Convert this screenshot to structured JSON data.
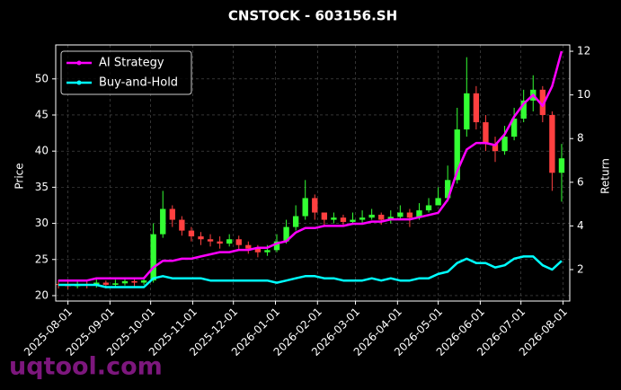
{
  "chart_data": {
    "type": "candlestick",
    "title": "CNSTOCK - 603156.SH",
    "ylabel": "Price",
    "y2label": "Return",
    "watermark": "uqtool.com",
    "x": [
      "2025-07-25",
      "2025-08-01",
      "2025-08-08",
      "2025-08-15",
      "2025-08-22",
      "2025-08-29",
      "2025-09-05",
      "2025-09-12",
      "2025-09-19",
      "2025-09-26",
      "2025-10-03",
      "2025-10-10",
      "2025-10-17",
      "2025-10-24",
      "2025-10-31",
      "2025-11-07",
      "2025-11-14",
      "2025-11-21",
      "2025-11-28",
      "2025-12-05",
      "2025-12-12",
      "2025-12-19",
      "2025-12-26",
      "2026-01-02",
      "2026-01-09",
      "2026-01-16",
      "2026-01-23",
      "2026-01-30",
      "2026-02-06",
      "2026-02-13",
      "2026-02-20",
      "2026-02-27",
      "2026-03-06",
      "2026-03-13",
      "2026-03-20",
      "2026-03-27",
      "2026-04-03",
      "2026-04-10",
      "2026-04-17",
      "2026-04-24",
      "2026-05-01",
      "2026-05-08",
      "2026-05-15",
      "2026-05-22",
      "2026-05-29",
      "2026-06-05",
      "2026-06-12",
      "2026-06-19",
      "2026-06-26",
      "2026-07-03",
      "2026-07-10",
      "2026-07-17",
      "2026-07-24",
      "2026-07-31"
    ],
    "open": [
      21.6,
      21.5,
      21.3,
      21.6,
      21.4,
      21.8,
      21.5,
      21.7,
      22.0,
      21.8,
      22.1,
      28.5,
      32.0,
      30.5,
      29.0,
      28.2,
      27.8,
      27.5,
      27.2,
      27.8,
      27.0,
      26.5,
      26.0,
      26.3,
      27.5,
      29.5,
      31.0,
      33.5,
      31.5,
      30.5,
      30.8,
      30.2,
      30.5,
      30.8,
      31.2,
      30.5,
      30.9,
      31.5,
      30.8,
      31.8,
      32.5,
      33.5,
      36.0,
      43.0,
      48.0,
      44.0,
      41.0,
      40.0,
      42.0,
      44.5,
      47.0,
      48.5,
      45.0,
      37.0
    ],
    "high": [
      22.2,
      22.0,
      22.1,
      22.0,
      22.3,
      22.1,
      22.2,
      22.5,
      22.4,
      22.6,
      30.0,
      34.5,
      32.5,
      31.0,
      29.5,
      28.8,
      28.5,
      28.2,
      28.5,
      28.3,
      27.5,
      27.0,
      27.0,
      28.5,
      30.5,
      32.5,
      36.0,
      34.0,
      31.5,
      31.5,
      31.2,
      31.5,
      31.8,
      32.0,
      31.5,
      31.8,
      32.5,
      32.0,
      32.8,
      33.5,
      35.0,
      38.0,
      46.0,
      53.0,
      49.0,
      45.0,
      42.0,
      43.5,
      46.0,
      48.5,
      50.5,
      49.0,
      45.5,
      41.0
    ],
    "low": [
      21.0,
      20.9,
      21.0,
      21.0,
      21.1,
      21.0,
      21.2,
      21.4,
      21.3,
      21.5,
      21.8,
      28.0,
      29.5,
      28.3,
      27.5,
      27.0,
      26.8,
      26.5,
      26.8,
      26.4,
      25.8,
      25.3,
      25.5,
      26.0,
      27.2,
      29.0,
      30.5,
      30.5,
      29.8,
      30.0,
      29.6,
      29.8,
      30.0,
      30.5,
      29.8,
      30.0,
      30.5,
      29.5,
      30.5,
      31.5,
      32.8,
      33.0,
      35.5,
      42.0,
      43.0,
      40.0,
      38.5,
      39.5,
      41.5,
      44.0,
      45.5,
      44.0,
      34.5,
      33.0
    ],
    "close": [
      21.5,
      21.3,
      21.6,
      21.4,
      21.8,
      21.5,
      21.7,
      22.0,
      21.8,
      22.1,
      28.5,
      32.0,
      30.5,
      29.0,
      28.2,
      27.8,
      27.5,
      27.2,
      27.8,
      27.0,
      26.5,
      26.0,
      26.3,
      27.5,
      29.5,
      31.0,
      33.5,
      31.5,
      30.5,
      30.8,
      30.2,
      30.5,
      30.8,
      31.2,
      30.5,
      30.9,
      31.5,
      30.8,
      31.8,
      32.5,
      33.5,
      36.0,
      43.0,
      48.0,
      44.0,
      41.0,
      40.0,
      42.0,
      44.5,
      47.0,
      48.5,
      45.0,
      37.0,
      39.0
    ],
    "up_color": "#33ff33",
    "down_color": "#ff4040",
    "series": [
      {
        "name": "AI Strategy",
        "color": "#ff00ff",
        "axis": "y2",
        "values": [
          1.5,
          1.5,
          1.5,
          1.5,
          1.6,
          1.6,
          1.6,
          1.6,
          1.6,
          1.6,
          2.1,
          2.4,
          2.4,
          2.5,
          2.5,
          2.6,
          2.7,
          2.8,
          2.8,
          2.9,
          2.9,
          3.0,
          3.0,
          3.2,
          3.3,
          3.7,
          3.9,
          3.9,
          4.0,
          4.0,
          4.0,
          4.1,
          4.1,
          4.2,
          4.2,
          4.3,
          4.3,
          4.3,
          4.4,
          4.5,
          4.6,
          5.2,
          6.5,
          7.5,
          7.8,
          7.8,
          7.7,
          8.2,
          9.0,
          9.6,
          10.0,
          9.5,
          10.4,
          12.0
        ]
      },
      {
        "name": "Buy-and-Hold",
        "color": "#00ffff",
        "axis": "y2",
        "values": [
          1.3,
          1.3,
          1.3,
          1.3,
          1.3,
          1.2,
          1.2,
          1.2,
          1.2,
          1.2,
          1.6,
          1.7,
          1.6,
          1.6,
          1.6,
          1.6,
          1.5,
          1.5,
          1.5,
          1.5,
          1.5,
          1.5,
          1.5,
          1.4,
          1.5,
          1.6,
          1.7,
          1.7,
          1.6,
          1.6,
          1.5,
          1.5,
          1.5,
          1.6,
          1.5,
          1.6,
          1.5,
          1.5,
          1.6,
          1.6,
          1.8,
          1.9,
          2.3,
          2.5,
          2.3,
          2.3,
          2.1,
          2.2,
          2.5,
          2.6,
          2.6,
          2.2,
          2.0,
          2.4
        ]
      }
    ],
    "xlim": [
      "2025-07-23",
      "2026-08-06"
    ],
    "xticks": [
      "2025-08-01",
      "2025-09-01",
      "2025-10-01",
      "2025-11-01",
      "2025-12-01",
      "2026-01-01",
      "2026-02-01",
      "2026-03-01",
      "2026-04-01",
      "2026-05-01",
      "2026-06-01",
      "2026-07-01",
      "2026-08-01"
    ],
    "ylim": [
      19.25,
      54.7
    ],
    "yticks": [
      20,
      25,
      30,
      35,
      40,
      45,
      50
    ],
    "y2lim": [
      0.56,
      12.29
    ],
    "y2ticks": [
      2,
      4,
      6,
      8,
      10,
      12
    ],
    "grid": true,
    "legend": "upper left"
  }
}
